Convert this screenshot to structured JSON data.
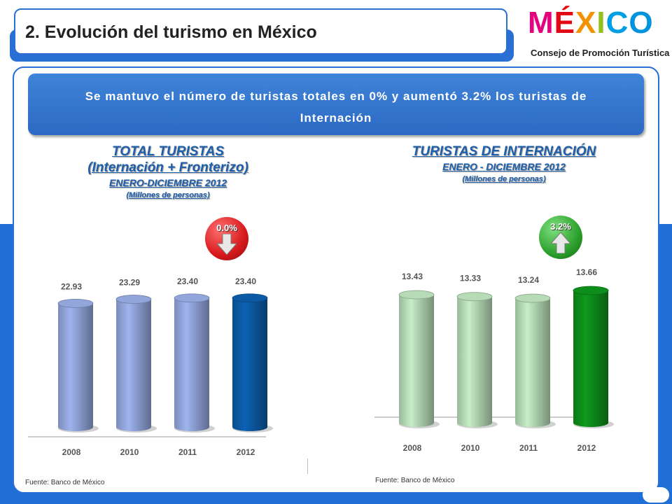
{
  "header": {
    "title": "2. Evolución del turismo en México"
  },
  "logo": {
    "word": [
      "M",
      "É",
      "X",
      "I",
      "C",
      "O"
    ],
    "word_colors": [
      "#e6007e",
      "#e30613",
      "#f39200",
      "#95c11f",
      "#009fe3",
      "#0093dd"
    ],
    "subtitle": "Consejo de Promoción Turística"
  },
  "banner": {
    "text": "Se mantuvo el número de turistas totales en  0%  y aumentó 3.2% los turistas de Internación"
  },
  "left_chart": {
    "heading": "TOTAL TURISTAS",
    "heading2": "(Internación + Fronterizo)",
    "period": "ENERO-DICIEMBRE  2012",
    "unit": "(Millones de personas)",
    "badge": {
      "label": "0.0%",
      "direction": "down",
      "color": "#d7191c",
      "icon": "arrow-down-icon"
    },
    "source": "Fuente: Banco  de México"
  },
  "right_chart": {
    "heading": "TURISTAS DE INTERNACIÓN",
    "period": "ENERO - DICIEMBRE  2012",
    "unit": "(Millones de personas)",
    "badge": {
      "label": "3.2%",
      "direction": "up",
      "color": "#2ca02c",
      "icon": "arrow-up-icon"
    },
    "source": "Fuente: Banco  de México"
  },
  "chart_data": [
    {
      "type": "bar",
      "categories": [
        "2008",
        "2010",
        "2011",
        "2012"
      ],
      "values": [
        22.93,
        23.29,
        23.4,
        23.4
      ],
      "value_labels": [
        "22.93",
        "23.29",
        "23.40",
        "23.40"
      ],
      "colors": [
        "#9fb4ee",
        "#9fb4ee",
        "#9fb4ee",
        "#0d62b4"
      ],
      "ylim": [
        12,
        24.5
      ]
    },
    {
      "type": "bar",
      "categories": [
        "2008",
        "2010",
        "2011",
        "2012"
      ],
      "values": [
        13.43,
        13.33,
        13.24,
        13.66
      ],
      "value_labels": [
        "13.43",
        "13.33",
        "13.24",
        "13.66"
      ],
      "colors": [
        "#c6eec6",
        "#c6eec6",
        "#c6eec6",
        "#0e9a1c"
      ],
      "ylim": [
        6.5,
        14.0
      ]
    }
  ]
}
